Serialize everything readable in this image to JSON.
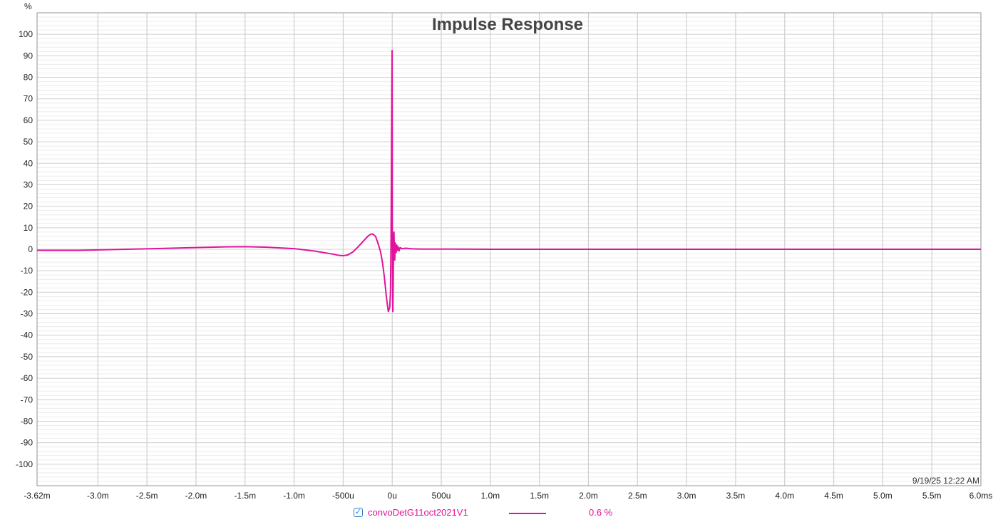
{
  "chart_data": {
    "type": "line",
    "title": "Impulse Response",
    "ylabel": "%",
    "xlabel": "",
    "timestamp": "9/19/25 12:22 AM",
    "xlim": [
      -3.62,
      6.0
    ],
    "ylim": [
      -110,
      110
    ],
    "x_ticks": [
      -3.62,
      -3.0,
      -2.5,
      -2.0,
      -1.5,
      -1.0,
      -0.5,
      0,
      0.5,
      1.0,
      1.5,
      2.0,
      2.5,
      3.0,
      3.5,
      4.0,
      4.5,
      5.0,
      5.5,
      6.0
    ],
    "x_tick_labels": [
      "-3.62m",
      "-3.0m",
      "-2.5m",
      "-2.0m",
      "-1.5m",
      "-1.0m",
      "-500u",
      "0u",
      "500u",
      "1.0m",
      "1.5m",
      "2.0m",
      "2.5m",
      "3.0m",
      "3.5m",
      "4.0m",
      "4.5m",
      "5.0m",
      "5.5m",
      "6.0ms"
    ],
    "y_ticks": [
      100,
      90,
      80,
      70,
      60,
      50,
      40,
      30,
      20,
      10,
      0,
      -10,
      -20,
      -30,
      -40,
      -50,
      -60,
      -70,
      -80,
      -90,
      -100
    ],
    "y_tick_labels": [
      "100",
      "90",
      "80",
      "70",
      "60",
      "50",
      "40",
      "30",
      "20",
      "10",
      "0",
      "-10",
      "-20",
      "-30",
      "-40",
      "-50",
      "-60",
      "-70",
      "-80",
      "-90",
      "-100"
    ],
    "grid": true,
    "legend_position": "bottom",
    "series": [
      {
        "name": "convoDetG11oct2021V1",
        "legend_value": "0.6 %",
        "color": "#e0149a",
        "x": [
          -3.62,
          -3.2,
          -3.0,
          -2.5,
          -2.0,
          -1.7,
          -1.5,
          -1.3,
          -1.0,
          -0.8,
          -0.6,
          -0.55,
          -0.5,
          -0.45,
          -0.4,
          -0.35,
          -0.3,
          -0.25,
          -0.22,
          -0.2,
          -0.17,
          -0.15,
          -0.12,
          -0.1,
          -0.08,
          -0.06,
          -0.04,
          -0.025,
          -0.018,
          -0.012,
          -0.008,
          -0.004,
          -0.001,
          0.0,
          0.002,
          0.006,
          0.01,
          0.014,
          0.018,
          0.022,
          0.026,
          0.03,
          0.034,
          0.04,
          0.046,
          0.052,
          0.06,
          0.07,
          0.08,
          0.1,
          0.14,
          0.2,
          0.3,
          0.5,
          1.0,
          2.0,
          4.0,
          6.0
        ],
        "y": [
          -0.5,
          -0.5,
          -0.3,
          0.2,
          0.8,
          1.1,
          1.2,
          1.0,
          0.3,
          -0.8,
          -2.3,
          -2.8,
          -3.0,
          -2.6,
          -1.2,
          1.0,
          3.5,
          6.0,
          7.0,
          7.1,
          6.0,
          3.5,
          -1.0,
          -6.0,
          -13.0,
          -22.0,
          -29.0,
          -27.0,
          -20.0,
          5.0,
          40.0,
          75.0,
          92.5,
          60.0,
          -10.0,
          -29.0,
          -15.0,
          6.0,
          8.0,
          -2.0,
          -5.0,
          3.0,
          1.0,
          -1.5,
          2.0,
          -0.5,
          1.2,
          -0.8,
          0.8,
          0.3,
          0.5,
          0.2,
          0.1,
          0.1,
          0.0,
          0.0,
          0.0,
          0.0
        ]
      }
    ]
  }
}
